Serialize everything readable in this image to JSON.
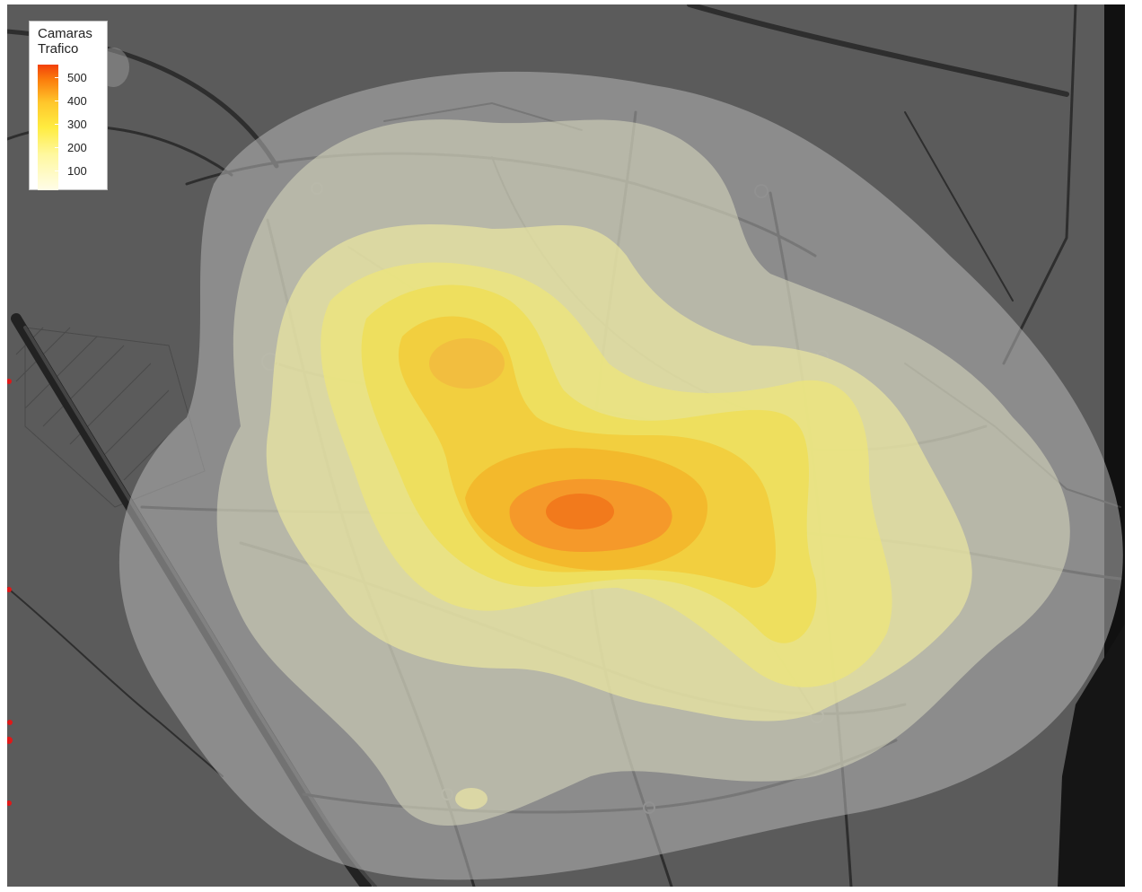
{
  "legend": {
    "title_line1": "Camaras",
    "title_line2": "Trafico",
    "ticks": [
      "500",
      "400",
      "300",
      "200",
      "100"
    ]
  },
  "colors": {
    "map_background": "#5a5a5a",
    "roads": "#2a2a2a",
    "outer_density": "#999999",
    "low_density": "#f7f4b0",
    "mid_density": "#f3ea55",
    "high_density": "#f4b820",
    "peak_density": "#f27c1c"
  },
  "icons": [
    "map-marker-dot"
  ]
}
